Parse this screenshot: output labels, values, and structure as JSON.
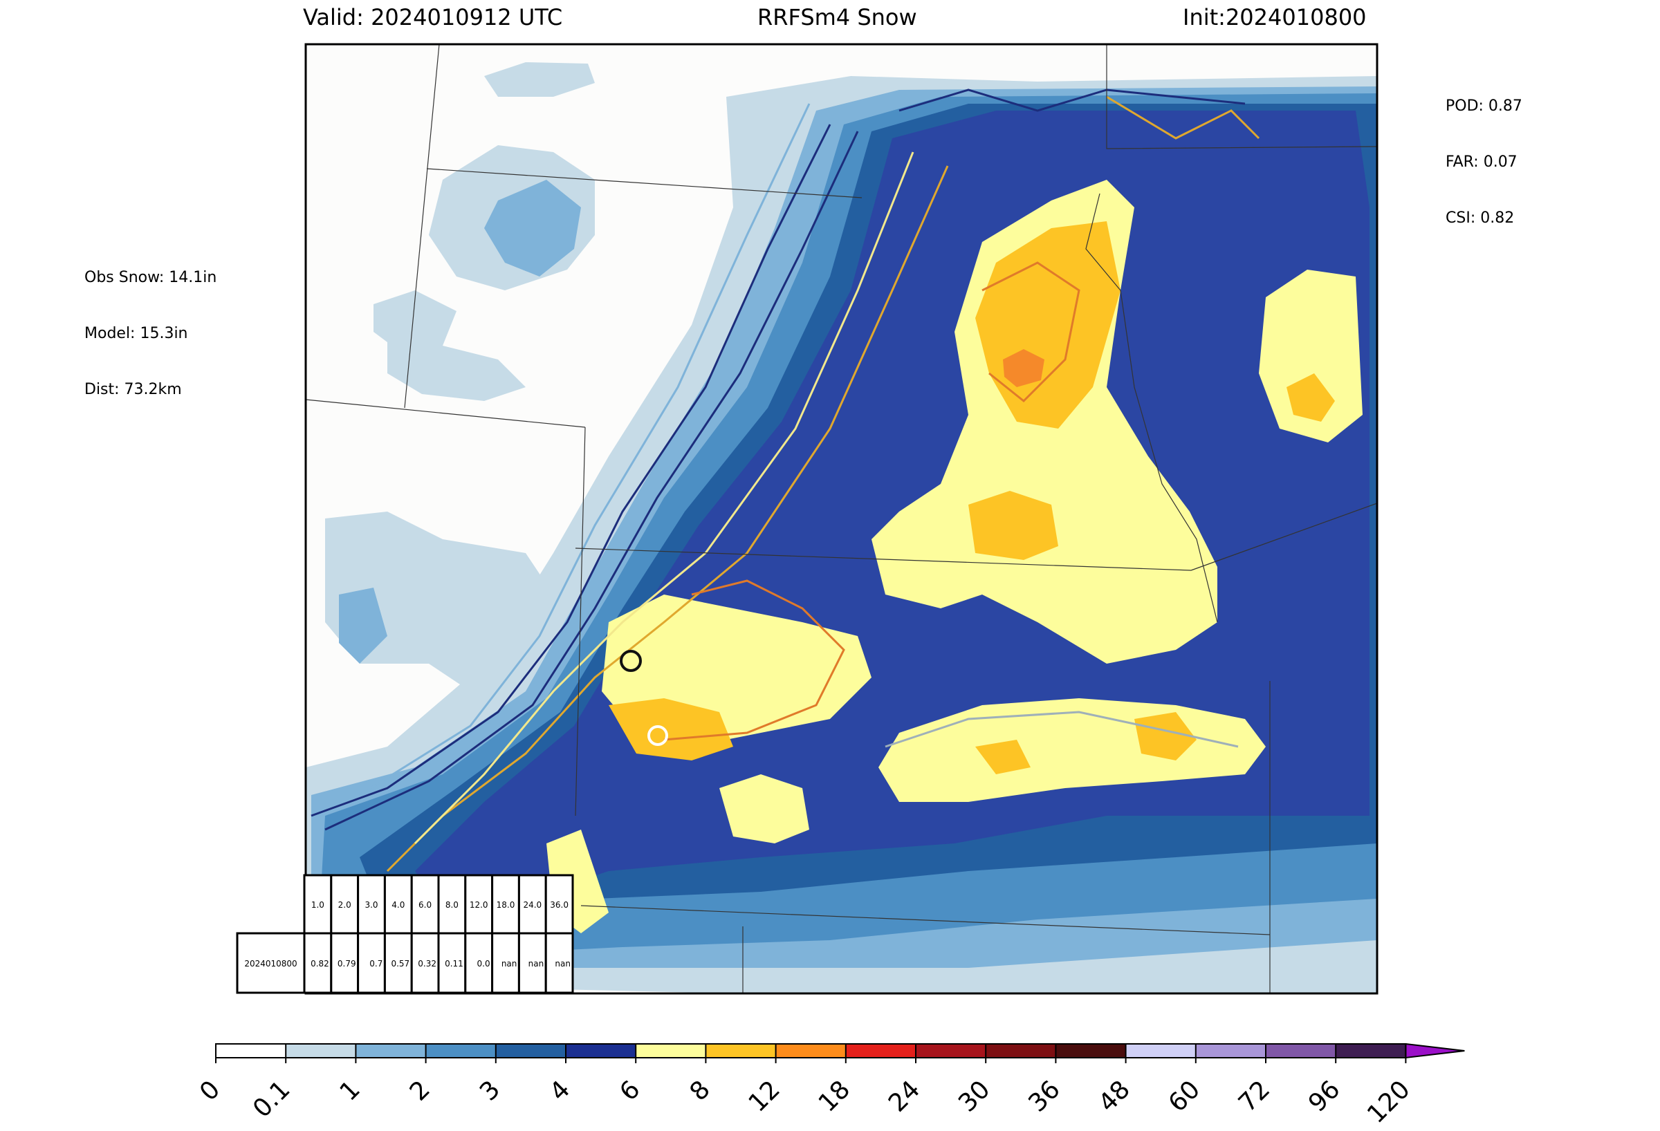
{
  "header": {
    "valid": "Valid: 2024010912 UTC",
    "title": "RRFSm4 Snow",
    "init": "Init:2024010800"
  },
  "scores": {
    "pod": "POD: 0.87",
    "far": "FAR: 0.07",
    "csi": "CSI: 0.82"
  },
  "point": {
    "obs": "Obs Snow: 14.1in",
    "model": "Model: 15.3in",
    "dist": "Dist: 73.2km"
  },
  "threshold_table": {
    "thresholds": [
      "1.0",
      "2.0",
      "3.0",
      "4.0",
      "6.0",
      "8.0",
      "12.0",
      "18.0",
      "24.0",
      "36.0"
    ],
    "row_label": "2024010800",
    "values": [
      "0.82",
      "0.79",
      "0.7",
      "0.57",
      "0.32",
      "0.11",
      "0.0",
      "nan",
      "nan",
      "nan"
    ]
  },
  "colorbar": {
    "ticks": [
      "0",
      "0.1",
      "1",
      "2",
      "3",
      "4",
      "6",
      "8",
      "12",
      "18",
      "24",
      "30",
      "36",
      "48",
      "60",
      "72",
      "96",
      "120"
    ],
    "colors": [
      "#ffffff",
      "#c6dbe7",
      "#7fb3d9",
      "#4c8fc4",
      "#235fa0",
      "#1b2f91",
      "#fdfd9c",
      "#fdc425",
      "#fd8c1b",
      "#e4201b",
      "#a7141c",
      "#7d0f12",
      "#4a0d0d",
      "#d0d0f6",
      "#a996d8",
      "#8057a7",
      "#3e1d52",
      "#9b10c8"
    ],
    "extend": "max"
  },
  "map_colors": {
    "land": "#fcfcfb",
    "light_blue": "#c6dbe7",
    "mid_blue": "#7fb3d9",
    "blue": "#4c8fc4",
    "steel_blue": "#235fa0",
    "navy": "#2b46a3",
    "yellow": "#fdfd9c",
    "gold": "#fdc425",
    "orange": "#f5892a"
  }
}
